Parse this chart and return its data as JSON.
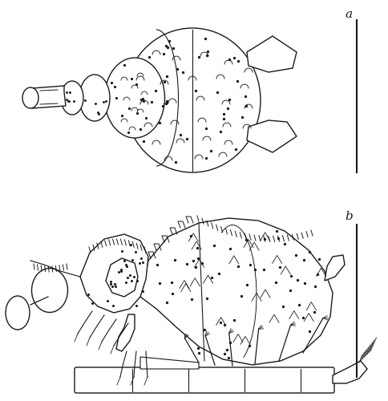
{
  "label_a": "a",
  "label_b": "b",
  "background_color": "#ffffff",
  "line_color": "#1a1a1a",
  "line_width": 1.0,
  "fig_width": 4.85,
  "fig_height": 5.0,
  "dpi": 100
}
